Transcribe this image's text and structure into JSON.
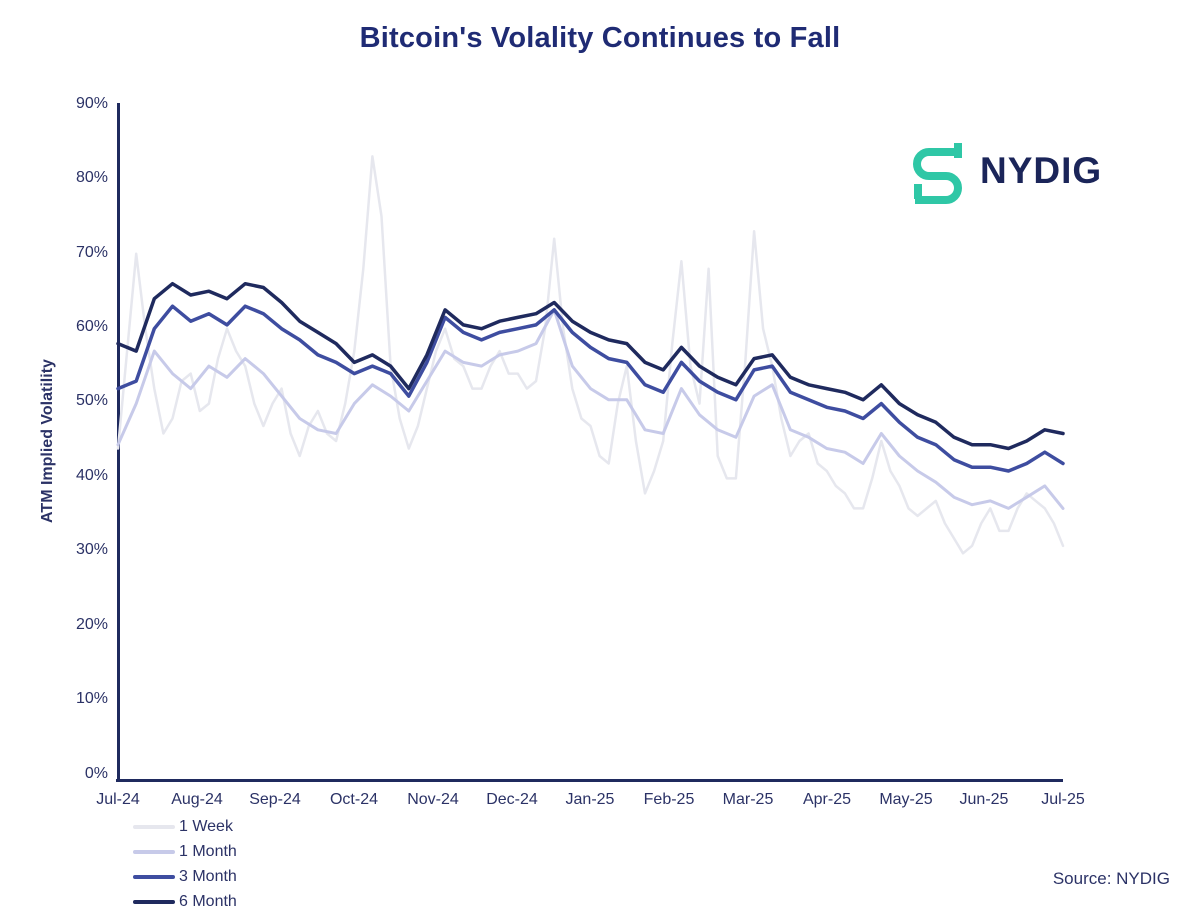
{
  "title": "Bitcoin's Volality Continues to Fall",
  "logo": {
    "text": "NYDIG",
    "icon_color": "#2fc7a6",
    "text_color": "#1b2559"
  },
  "source": "Source: NYDIG",
  "colors": {
    "title_navy": "#1f2b74",
    "axis_navy": "#1f2a5e",
    "tick_text": "#2b3266"
  },
  "chart_data": {
    "type": "line",
    "title": "Bitcoin's Volality Continues to Fall",
    "xlabel": "",
    "ylabel": "ATM Implied Volatility",
    "ylim": [
      0,
      90
    ],
    "grid": false,
    "legend_position": "bottom-left",
    "x_ticks": [
      "Jul-24",
      "Aug-24",
      "Sep-24",
      "Oct-24",
      "Nov-24",
      "Dec-24",
      "Jan-25",
      "Feb-25",
      "Mar-25",
      "Apr-25",
      "May-25",
      "Jun-25",
      "Jul-25"
    ],
    "y_ticks": [
      "90%",
      "80%",
      "70%",
      "60%",
      "50%",
      "40%",
      "30%",
      "20%",
      "10%",
      "0%"
    ],
    "x_range_note": "weekly observations from Jul-2024 through Jul-2025, values in percent implied volatility",
    "series": [
      {
        "name": "1 Week",
        "color": "#e6e7ee",
        "stroke_width": 2.5,
        "values": [
          44,
          57,
          70,
          60,
          52,
          46,
          48,
          53,
          54,
          49,
          50,
          56,
          60,
          57,
          55,
          50,
          47,
          50,
          52,
          46,
          43,
          47,
          49,
          46,
          45,
          50,
          57,
          68,
          83,
          75,
          55,
          48,
          44,
          47,
          52,
          57,
          60,
          56,
          55,
          52,
          52,
          55,
          57,
          54,
          54,
          52,
          53,
          60,
          72,
          60,
          52,
          48,
          47,
          43,
          42,
          50,
          55,
          45,
          38,
          41,
          45,
          58,
          69,
          55,
          50,
          68,
          43,
          40,
          40,
          55,
          73,
          60,
          55,
          48,
          43,
          45,
          46,
          42,
          41,
          39,
          38,
          36,
          36,
          40,
          45,
          41,
          39,
          36,
          35,
          36,
          37,
          34,
          32,
          30,
          31,
          34,
          36,
          33,
          33,
          36,
          38,
          37,
          36,
          34,
          31
        ]
      },
      {
        "name": "1 Month",
        "color": "#c7cae9",
        "stroke_width": 3,
        "values": [
          44.5,
          50,
          57,
          54,
          52,
          55,
          53.5,
          56,
          54,
          51,
          48,
          46.5,
          46,
          50,
          52.5,
          51,
          49,
          53,
          57,
          55.5,
          55,
          56.5,
          57,
          58,
          62.5,
          55,
          52,
          50.5,
          50.5,
          46.5,
          46,
          52,
          48.5,
          46.5,
          45.5,
          51,
          52.5,
          46.5,
          45.5,
          44,
          43.5,
          42,
          46,
          43,
          41,
          39.5,
          37.5,
          36.5,
          37,
          36,
          37.5,
          39,
          36
        ]
      },
      {
        "name": "3 Month",
        "color": "#3e4da0",
        "stroke_width": 3.5,
        "values": [
          52,
          53,
          60,
          63,
          61,
          62,
          60.5,
          63,
          62,
          60,
          58.5,
          56.5,
          55.5,
          54,
          55,
          54,
          51,
          55.5,
          61.5,
          59.5,
          58.5,
          59.5,
          60,
          60.5,
          62.5,
          59.5,
          57.5,
          56,
          55.5,
          52.5,
          51.5,
          55.5,
          53,
          51.5,
          50.5,
          54.5,
          55,
          51.5,
          50.5,
          49.5,
          49,
          48,
          50,
          47.5,
          45.5,
          44.5,
          42.5,
          41.5,
          41.5,
          41,
          42,
          43.5,
          42
        ]
      },
      {
        "name": "6 Month",
        "color": "#1f2a5e",
        "stroke_width": 3.5,
        "values": [
          58,
          57,
          64,
          66,
          64.5,
          65,
          64,
          66,
          65.5,
          63.5,
          61,
          59.5,
          58,
          55.5,
          56.5,
          55,
          52,
          56.5,
          62.5,
          60.5,
          60,
          61,
          61.5,
          62,
          63.5,
          61,
          59.5,
          58.5,
          58,
          55.5,
          54.5,
          57.5,
          55,
          53.5,
          52.5,
          56,
          56.5,
          53.5,
          52.5,
          52,
          51.5,
          50.5,
          52.5,
          50,
          48.5,
          47.5,
          45.5,
          44.5,
          44.5,
          44,
          45,
          46.5,
          46
        ]
      }
    ]
  }
}
